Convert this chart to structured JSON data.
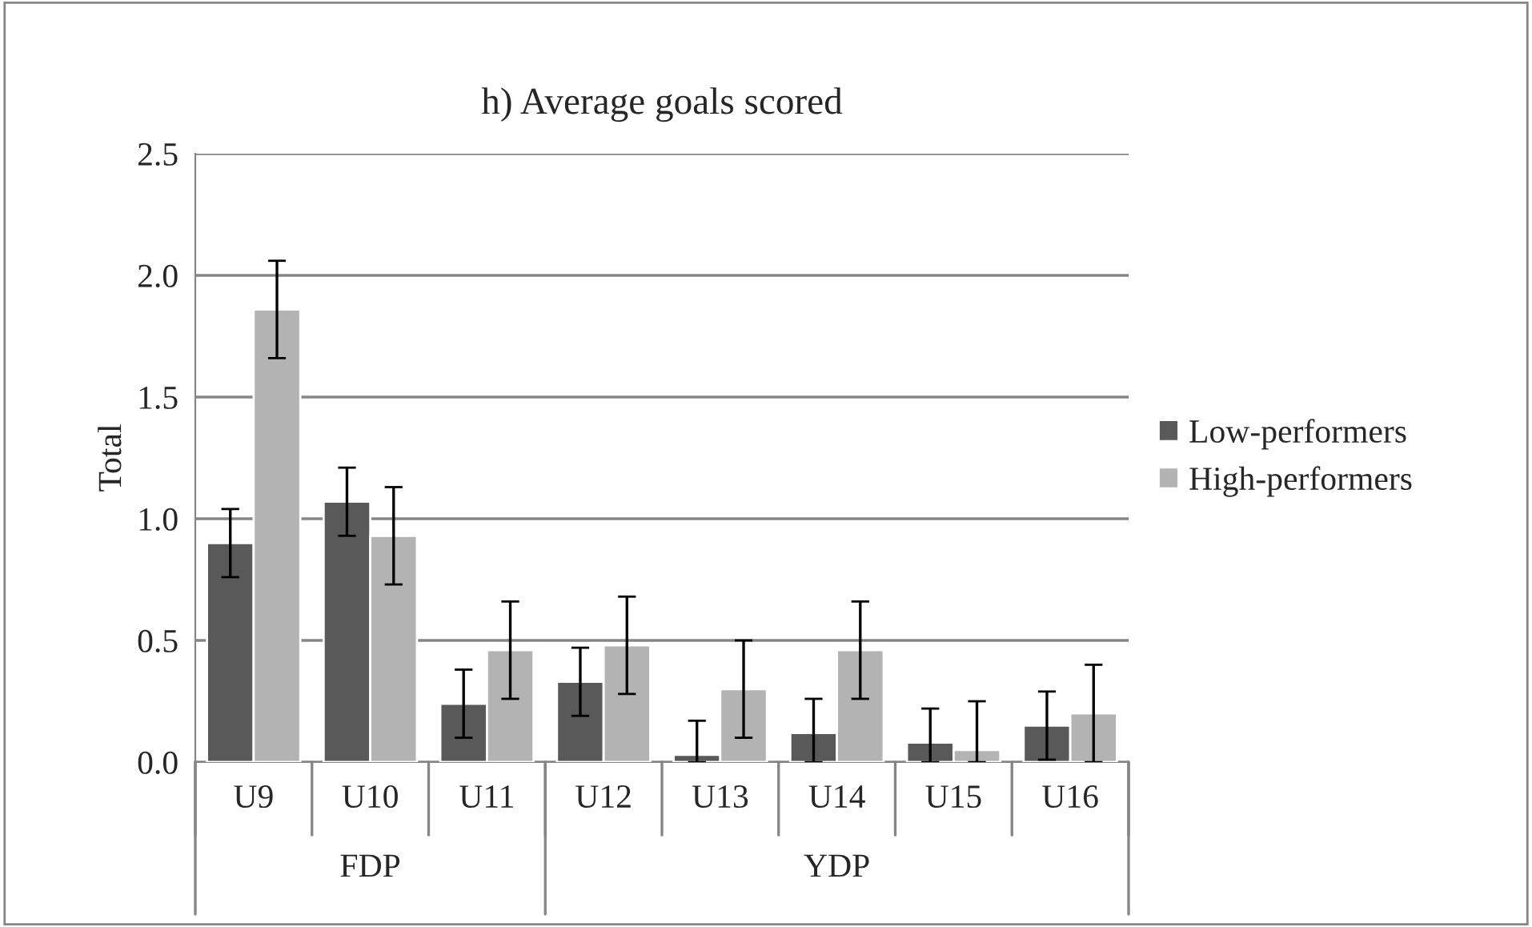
{
  "chart_data": {
    "type": "bar",
    "title": "h) Average goals scored",
    "ylabel": "Total",
    "categories": [
      "U9",
      "U10",
      "U11",
      "U12",
      "U13",
      "U14",
      "U15",
      "U16"
    ],
    "series": [
      {
        "name": "Low-performers",
        "color": "#595959",
        "values": [
          0.9,
          1.07,
          0.24,
          0.33,
          0.03,
          0.12,
          0.08,
          0.15
        ],
        "errors": [
          0.14,
          0.14,
          0.14,
          0.14,
          [
            0,
            0.17
          ],
          [
            0,
            0.26
          ],
          [
            0,
            0.22
          ],
          0.14
        ]
      },
      {
        "name": "High-performers",
        "color": "#b3b3b3",
        "values": [
          1.86,
          0.93,
          0.46,
          0.48,
          0.3,
          0.46,
          0.05,
          0.2
        ],
        "errors": [
          0.2,
          0.2,
          0.2,
          0.2,
          0.2,
          0.2,
          [
            0,
            0.25
          ],
          0.2
        ]
      }
    ],
    "ylim": [
      0,
      2.5
    ],
    "yticks": [
      {
        "value": 0,
        "label": "0.0"
      },
      {
        "value": 0.5,
        "label": "0.5"
      },
      {
        "value": 1,
        "label": "1.0"
      },
      {
        "value": 1.5,
        "label": "1.5"
      },
      {
        "value": 2,
        "label": "2.0"
      },
      {
        "value": 2.5,
        "label": "2.5"
      }
    ],
    "grid": "y",
    "legend": "right",
    "annotations": [
      "FDP",
      "YDP"
    ]
  }
}
